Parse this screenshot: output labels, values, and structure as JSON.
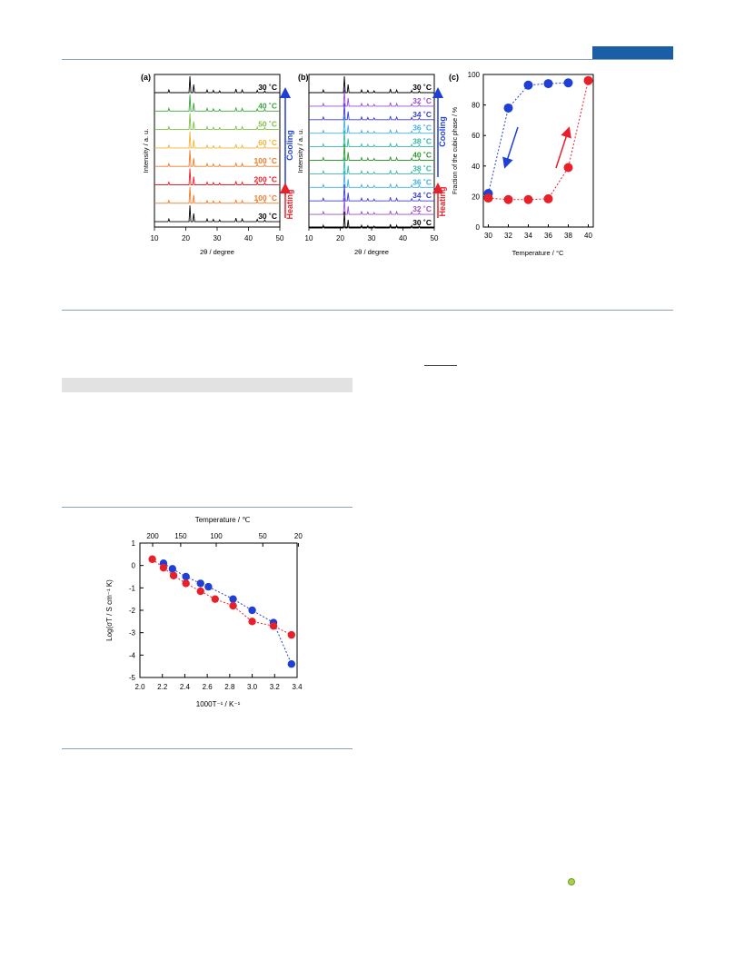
{
  "colors": {
    "heating": "#e8202a",
    "cooling": "#1f3fd6",
    "header_tab": "#1a5fa6",
    "rule": "#8aa3b8"
  },
  "panel_a": {
    "label": "(a)",
    "ylabel": "Intensity / a. u.",
    "xlabel": "2θ / degree",
    "xticks": [
      "10",
      "20",
      "30",
      "40",
      "50"
    ],
    "traces": [
      {
        "label": "30 ˚C",
        "color": "#000000"
      },
      {
        "label": "40 ˚C",
        "color": "#3aa43a"
      },
      {
        "label": "50 ˚C",
        "color": "#7cc242"
      },
      {
        "label": "60 ˚C",
        "color": "#f5b335"
      },
      {
        "label": "100 ˚C",
        "color": "#f07a28"
      },
      {
        "label": "200 ˚C",
        "color": "#e8202a"
      },
      {
        "label": "100 ˚C",
        "color": "#f07a28"
      },
      {
        "label": "30 ˚C",
        "color": "#000000"
      }
    ],
    "cooling_label": "Cooling",
    "heating_label": "Heating"
  },
  "panel_b": {
    "label": "(b)",
    "ylabel": "Intensity / a. u.",
    "xlabel": "2θ / degree",
    "xticks": [
      "10",
      "20",
      "30",
      "40",
      "50"
    ],
    "traces": [
      {
        "label": "30 ˚C",
        "color": "#000000"
      },
      {
        "label": "32 ˚C",
        "color": "#9a4fd0"
      },
      {
        "label": "34 ˚C",
        "color": "#3b3bd6"
      },
      {
        "label": "36 ˚C",
        "color": "#3fb0e6"
      },
      {
        "label": "38 ˚C",
        "color": "#38b8a6"
      },
      {
        "label": "40 ˚C",
        "color": "#2f9a2f"
      },
      {
        "label": "38 ˚C",
        "color": "#38b8a6"
      },
      {
        "label": "36 ˚C",
        "color": "#3fb0e6"
      },
      {
        "label": "34 ˚C",
        "color": "#3b3bd6"
      },
      {
        "label": "32 ˚C",
        "color": "#9a4fd0"
      },
      {
        "label": "30 ˚C",
        "color": "#000000"
      }
    ],
    "cooling_label": "Cooling",
    "heating_label": "Heating"
  },
  "chart_data": [
    {
      "type": "scatter",
      "label": "(c)",
      "xlabel": "Temperature / °C",
      "ylabel": "Fraction of the cubic phase / %",
      "xlim": [
        29.5,
        40.5
      ],
      "ylim": [
        0,
        100
      ],
      "xticks": [
        30,
        32,
        34,
        36,
        38,
        40
      ],
      "yticks": [
        0,
        20,
        40,
        60,
        80,
        100
      ],
      "series": [
        {
          "color": "#1f3fd6",
          "x": [
            30,
            32,
            34,
            36,
            38
          ],
          "y": [
            22,
            78,
            93,
            94,
            94.5
          ]
        },
        {
          "color": "#e8202a",
          "x": [
            30,
            32,
            34,
            36,
            38,
            40
          ],
          "y": [
            19,
            18,
            18,
            18.5,
            39,
            96
          ]
        }
      ]
    },
    {
      "type": "scatter",
      "xlabel": "1000T⁻¹ / K⁻¹",
      "ylabel": "Log(σT / S cm⁻¹ K)",
      "x2label": "Temperature / ℃",
      "xlim": [
        2.0,
        3.4
      ],
      "ylim": [
        -5,
        1
      ],
      "xticks": [
        2.0,
        2.2,
        2.4,
        2.6,
        2.8,
        3.0,
        3.2,
        3.4
      ],
      "yticks": [
        -5,
        -4,
        -3,
        -2,
        -1,
        0,
        1
      ],
      "top_ticks": [
        200,
        150,
        100,
        50,
        20
      ],
      "series": [
        {
          "color": "#1f3fd6",
          "x": [
            2.21,
            2.29,
            2.41,
            2.54,
            2.61,
            2.83,
            3.0,
            3.19,
            3.35
          ],
          "y": [
            0.1,
            -0.15,
            -0.5,
            -0.8,
            -0.95,
            -1.5,
            -2.0,
            -2.55,
            -4.4
          ]
        },
        {
          "color": "#e8202a",
          "x": [
            2.11,
            2.21,
            2.3,
            2.41,
            2.54,
            2.67,
            2.83,
            3.0,
            3.19,
            3.35
          ],
          "y": [
            0.28,
            -0.1,
            -0.45,
            -0.8,
            -1.15,
            -1.5,
            -1.8,
            -2.5,
            -2.7,
            -3.1
          ]
        }
      ]
    }
  ]
}
